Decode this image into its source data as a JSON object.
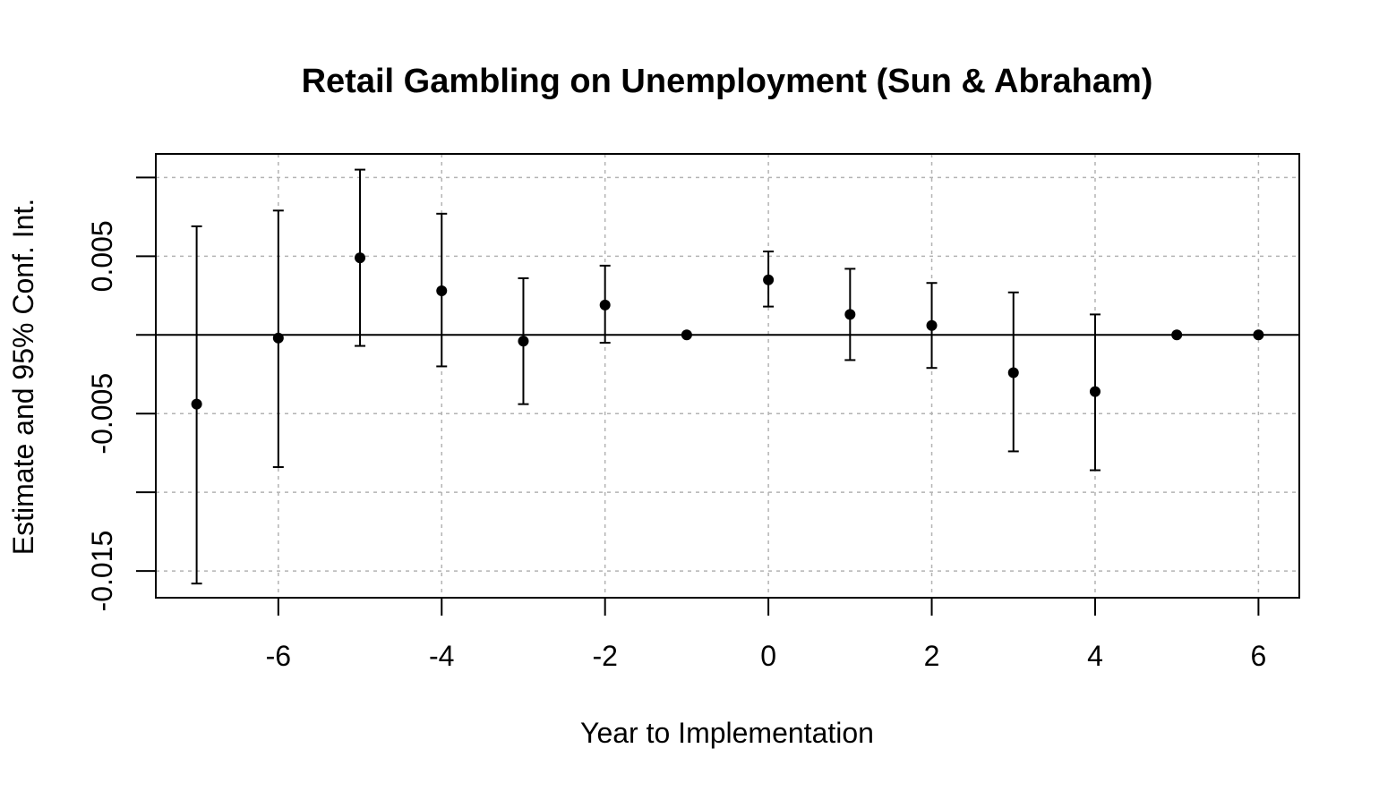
{
  "chart_data": {
    "type": "scatter",
    "title": "Retail Gambling on Unemployment (Sun & Abraham)",
    "xlabel": "Year to Implementation",
    "ylabel": "Estimate and 95% Conf. Int.",
    "xlim": [
      -7.5,
      6.5
    ],
    "ylim": [
      -0.0167,
      0.0115
    ],
    "x_ticks": [
      -6,
      -4,
      -2,
      0,
      2,
      4,
      6
    ],
    "x_tick_labels": [
      "-6",
      "-4",
      "-2",
      "0",
      "2",
      "4",
      "6"
    ],
    "y_ticks": [
      -0.015,
      -0.01,
      -0.005,
      0,
      0.005,
      0.01
    ],
    "y_tick_labels": [
      "-0.015",
      "",
      "-0.005",
      "",
      "0.005",
      ""
    ],
    "grid": true,
    "zero_line": true,
    "points": [
      {
        "x": -7,
        "estimate": -0.0044,
        "ci_low": -0.0158,
        "ci_high": 0.0069
      },
      {
        "x": -6,
        "estimate": -0.0002,
        "ci_low": -0.0084,
        "ci_high": 0.0079
      },
      {
        "x": -5,
        "estimate": 0.0049,
        "ci_low": -0.0007,
        "ci_high": 0.0105
      },
      {
        "x": -4,
        "estimate": 0.0028,
        "ci_low": -0.002,
        "ci_high": 0.0077
      },
      {
        "x": -3,
        "estimate": -0.0004,
        "ci_low": -0.0044,
        "ci_high": 0.0036
      },
      {
        "x": -2,
        "estimate": 0.0019,
        "ci_low": -0.0005,
        "ci_high": 0.0044
      },
      {
        "x": -1,
        "estimate": 0.0,
        "ci_low": null,
        "ci_high": null
      },
      {
        "x": 0,
        "estimate": 0.0035,
        "ci_low": 0.0018,
        "ci_high": 0.0053
      },
      {
        "x": 1,
        "estimate": 0.0013,
        "ci_low": -0.0016,
        "ci_high": 0.0042
      },
      {
        "x": 2,
        "estimate": 0.0006,
        "ci_low": -0.0021,
        "ci_high": 0.0033
      },
      {
        "x": 3,
        "estimate": -0.0024,
        "ci_low": -0.0074,
        "ci_high": 0.0027
      },
      {
        "x": 4,
        "estimate": -0.0036,
        "ci_low": -0.0086,
        "ci_high": 0.0013
      },
      {
        "x": 5,
        "estimate": 0.0,
        "ci_low": null,
        "ci_high": null
      },
      {
        "x": 6,
        "estimate": 0.0,
        "ci_low": null,
        "ci_high": null
      }
    ],
    "colors": {
      "marks": "#000000",
      "grid": "#b3b3b3",
      "background": "#ffffff"
    }
  }
}
